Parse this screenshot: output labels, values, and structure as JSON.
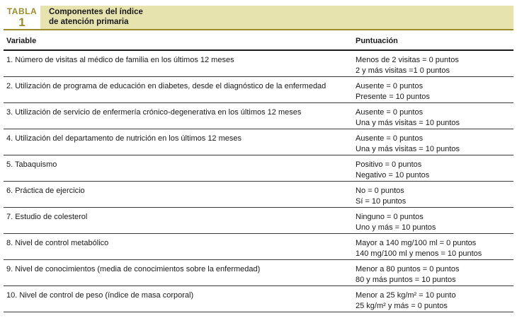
{
  "header": {
    "table_label": "TABLA",
    "table_number": "1",
    "title_line1": "Componentes del índice",
    "title_line2": "de atención primaria"
  },
  "columns": {
    "variable": "Variable",
    "score": "Puntuación"
  },
  "rows": [
    {
      "variable": "1. Número de visitas al médico de familia en los últimos 12 meses",
      "score_lines": [
        "Menos de 2 visitas = 0 puntos",
        "2 y más visitas =1 0 puntos"
      ]
    },
    {
      "variable": "2. Utilización de programa de educación en diabetes, desde el diagnóstico de la enfermedad",
      "score_lines": [
        "Ausente = 0 puntos",
        "Presente = 10 puntos"
      ]
    },
    {
      "variable": "3. Utilización de servicio de enfermería crónico-degenerativa en los últimos 12 meses",
      "score_lines": [
        "Ausente = 0 puntos",
        "Una y más visitas = 10 puntos"
      ]
    },
    {
      "variable": "4. Utilización del departamento de nutrición en los últimos 12 meses",
      "score_lines": [
        "Ausente = 0 puntos",
        "Una y más visitas = 10 puntos"
      ]
    },
    {
      "variable": "5. Tabaquismo",
      "score_lines": [
        "Positivo = 0 puntos",
        "Negativo = 10 puntos"
      ]
    },
    {
      "variable": "6. Práctica de ejercicio",
      "score_lines": [
        "No = 0 puntos",
        "Sí = 10 puntos"
      ]
    },
    {
      "variable": "7. Estudio de colesterol",
      "score_lines": [
        "Ninguno = 0 puntos",
        "Uno y más = 10 puntos"
      ]
    },
    {
      "variable": "8. Nivel de control  metabólico",
      "score_lines": [
        "Mayor a 140 mg/100 ml = 0 puntos",
        "140 mg/100 ml y menos = 10 puntos"
      ]
    },
    {
      "variable": "9. Nivel de conocimientos (media de conocimientos sobre la enfermedad)",
      "score_lines": [
        "Menor a 80 puntos = 0 puntos",
        "80 y más puntos = 10 puntos"
      ]
    },
    {
      "variable": "10. Nivel de control de peso (índice de masa corporal)",
      "score_lines": [
        "Menor a 25 kg/m² = 10 punto",
        "25 kg/m² y más = 0 puntos"
      ]
    }
  ],
  "colors": {
    "accent_olive": "#9a8b2b",
    "banner_bg": "#e7e3ae",
    "rule_dark": "#1a1a1a"
  }
}
